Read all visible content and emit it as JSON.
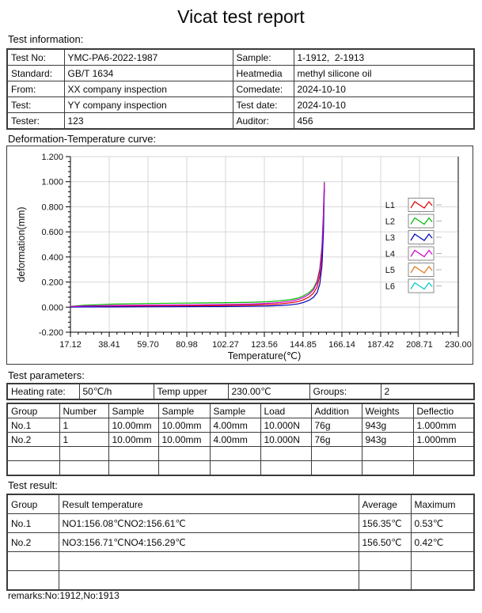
{
  "title": "Vicat test report",
  "sections": {
    "info_label": "Test information:",
    "curve_label": "Deformation-Temperature curve:",
    "params_label": "Test parameters:",
    "result_label": "Test result:",
    "remarks": "remarks:No:1912,No:1913"
  },
  "tables": {
    "info": {
      "rows": [
        [
          "Test No:",
          "YMC-PA6-2022-1987",
          "Sample:",
          "1-1912,  2-1913"
        ],
        [
          "Standard:",
          "GB/T 1634",
          "Heatmedia",
          "methyl silicone oil"
        ],
        [
          "From:",
          "XX company inspection",
          "Comedate:",
          "2024-10-10"
        ],
        [
          "Test:",
          "YY company inspection",
          "Test date:",
          "2024-10-10"
        ],
        [
          "Tester:",
          "123",
          "Auditor:",
          "456"
        ]
      ]
    },
    "heating": {
      "rows": [
        [
          "Heating rate:",
          "50℃/h",
          "Temp upper",
          "230.00℃",
          "Groups:",
          "2"
        ]
      ]
    },
    "params": {
      "header": [
        "Group",
        "Number",
        "Sample",
        "Sample",
        "Sample",
        "Load",
        "Addition",
        "Weights",
        "Deflectio"
      ],
      "rows": [
        [
          "No.1",
          "1",
          "10.00mm",
          "10.00mm",
          "4.00mm",
          "10.000N",
          "76g",
          "943g",
          "1.000mm"
        ],
        [
          "No.2",
          "1",
          "10.00mm",
          "10.00mm",
          "4.00mm",
          "10.000N",
          "76g",
          "943g",
          "1.000mm"
        ],
        [
          "",
          "",
          "",
          "",
          "",
          "",
          "",
          "",
          ""
        ],
        [
          "",
          "",
          "",
          "",
          "",
          "",
          "",
          "",
          ""
        ]
      ]
    },
    "result": {
      "header": [
        "Group",
        "Result temperature",
        "Average",
        "Maximum"
      ],
      "rows": [
        [
          "No.1",
          "NO1:156.08℃NO2:156.61℃",
          "156.35℃",
          "0.53℃"
        ],
        [
          "No.2",
          "NO3:156.71℃NO4:156.29℃",
          "156.50℃",
          "0.42℃"
        ],
        [
          "",
          "",
          "",
          ""
        ],
        [
          "",
          "",
          "",
          ""
        ]
      ]
    }
  },
  "chart_data": {
    "type": "line",
    "title": "Deformation-Temperature curve",
    "xlabel": "Temperature(℃)",
    "ylabel": "deformation(mm)",
    "xlim": [
      17.12,
      230.0
    ],
    "ylim": [
      -0.2,
      1.2
    ],
    "grid": true,
    "legend_position": "right-inside",
    "x_ticks": [
      17.12,
      38.41,
      59.7,
      80.98,
      102.27,
      123.56,
      144.85,
      166.14,
      187.42,
      208.71,
      230.0
    ],
    "y_ticks": [
      -0.2,
      0.0,
      0.2,
      0.4,
      0.6,
      0.8,
      1.0,
      1.2
    ],
    "legend": [
      {
        "name": "L1",
        "color": "#dd0000"
      },
      {
        "name": "L2",
        "color": "#00bb00"
      },
      {
        "name": "L3",
        "color": "#0000bb"
      },
      {
        "name": "L4",
        "color": "#cc00cc"
      },
      {
        "name": "L5",
        "color": "#e07818"
      },
      {
        "name": "L6",
        "color": "#00cccc"
      }
    ],
    "x": [
      17.12,
      25,
      40,
      60,
      80,
      100,
      115,
      125,
      132,
      138,
      142,
      145,
      148,
      150.5,
      152.5,
      154,
      155.2,
      156,
      156.5
    ],
    "series": [
      {
        "name": "L1",
        "color": "#dd0000",
        "values": [
          0.004,
          0.006,
          0.008,
          0.009,
          0.01,
          0.013,
          0.016,
          0.02,
          0.026,
          0.034,
          0.044,
          0.058,
          0.08,
          0.11,
          0.16,
          0.25,
          0.42,
          0.7,
          0.985
        ]
      },
      {
        "name": "L2",
        "color": "#00bb00",
        "values": [
          0.006,
          0.015,
          0.024,
          0.029,
          0.032,
          0.035,
          0.038,
          0.043,
          0.05,
          0.06,
          0.072,
          0.09,
          0.115,
          0.15,
          0.21,
          0.31,
          0.49,
          0.76,
          1.0
        ]
      },
      {
        "name": "L3",
        "color": "#0000bb",
        "values": [
          0.001,
          0.002,
          0.002,
          0.003,
          0.004,
          0.005,
          0.007,
          0.009,
          0.013,
          0.018,
          0.026,
          0.037,
          0.054,
          0.078,
          0.115,
          0.185,
          0.33,
          0.6,
          0.95
        ]
      },
      {
        "name": "L4",
        "color": "#cc00cc",
        "values": [
          0.005,
          0.009,
          0.013,
          0.016,
          0.018,
          0.021,
          0.025,
          0.03,
          0.037,
          0.047,
          0.06,
          0.077,
          0.102,
          0.137,
          0.195,
          0.295,
          0.47,
          0.74,
          0.995
        ]
      }
    ]
  }
}
